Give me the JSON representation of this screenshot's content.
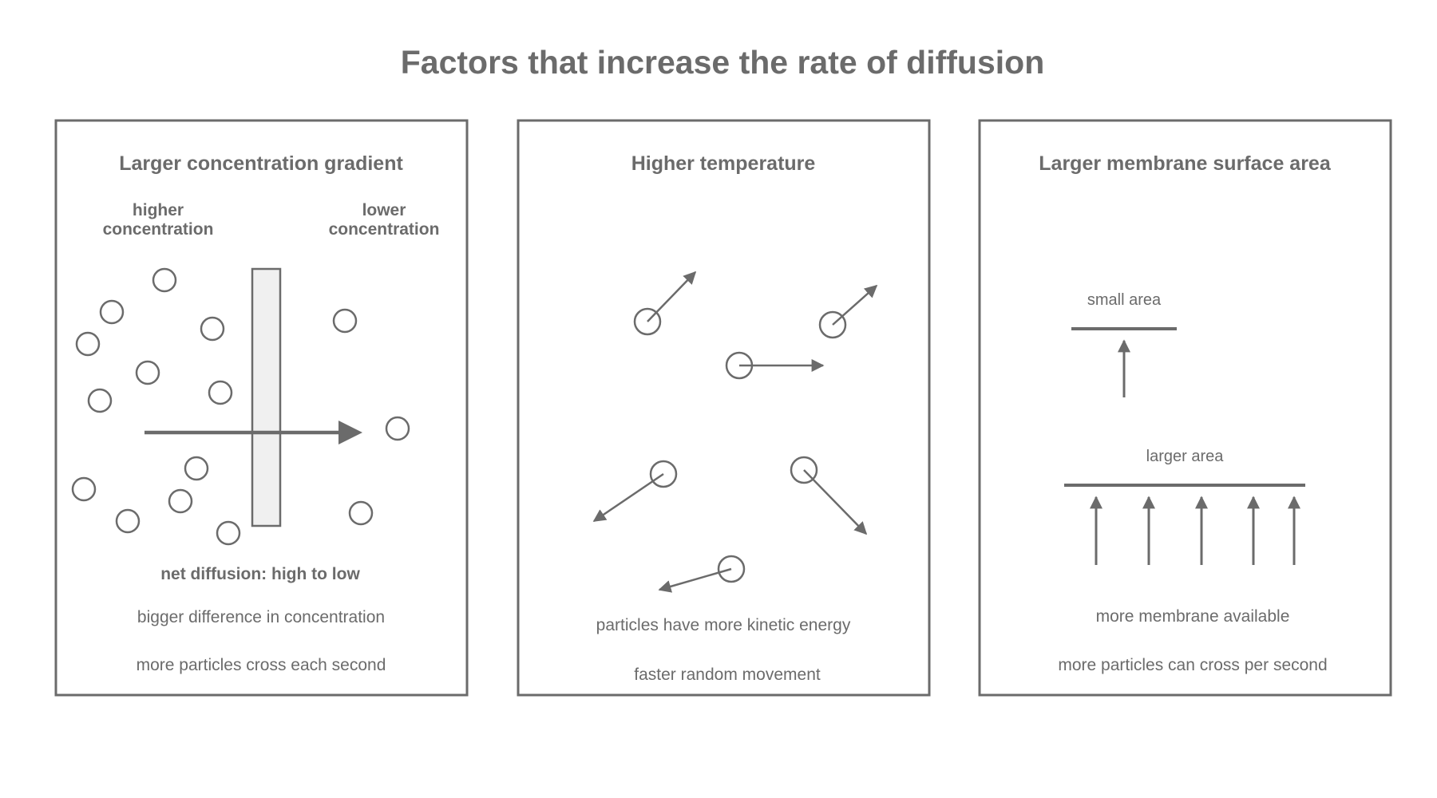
{
  "title": "Factors that increase the rate of diffusion",
  "colors": {
    "ink": "#6b6b6b",
    "membrane_fill": "#f0f0f0",
    "background": "#ffffff"
  },
  "panels": [
    {
      "title": "Larger concentration gradient",
      "left_label_line1": "higher",
      "left_label_line2": "concentration",
      "right_label_line1": "lower",
      "right_label_line2": "concentration",
      "caption_bold": "net diffusion: high to low",
      "caption_line1": "bigger difference in concentration",
      "caption_line2": "more particles cross each second"
    },
    {
      "title": "Higher temperature",
      "caption_line1": "particles have more kinetic energy",
      "caption_line2": "faster random movement"
    },
    {
      "title": "Larger membrane surface area",
      "small_label": "small area",
      "large_label": "larger area",
      "caption_line1": "more membrane available",
      "caption_line2": "more particles can cross per second"
    }
  ]
}
